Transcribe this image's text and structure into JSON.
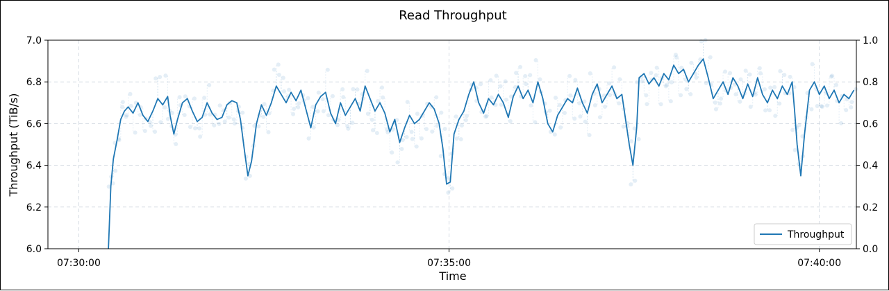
{
  "chart_data": {
    "type": "line",
    "title": "Read Throughput",
    "xlabel": "Time",
    "ylabel": "Throughput (TiB/s)",
    "x_ticks": [
      "07:30:00",
      "07:35:00",
      "07:40:00"
    ],
    "y_ticks": [
      "6.0",
      "6.2",
      "6.4",
      "6.6",
      "6.8",
      "7.0"
    ],
    "y_right_ticks": [
      "0.0",
      "0.2",
      "0.4",
      "0.6",
      "0.8",
      "1.0"
    ],
    "xlim": [
      "07:29:35",
      "07:40:30"
    ],
    "ylim": [
      6.0,
      7.0
    ],
    "y_right_lim": [
      0.0,
      1.0
    ],
    "grid": true,
    "legend_position": "bottom-right",
    "series": [
      {
        "name": "Throughput",
        "color": "#1f77b4",
        "points": [
          [
            "07:30:24",
            6.0
          ],
          [
            "07:30:26",
            6.3
          ],
          [
            "07:30:28",
            6.43
          ],
          [
            "07:30:31",
            6.52
          ],
          [
            "07:30:34",
            6.62
          ],
          [
            "07:30:37",
            6.66
          ],
          [
            "07:30:40",
            6.68
          ],
          [
            "07:30:44",
            6.65
          ],
          [
            "07:30:48",
            6.7
          ],
          [
            "07:30:52",
            6.64
          ],
          [
            "07:30:56",
            6.61
          ],
          [
            "07:31:00",
            6.66
          ],
          [
            "07:31:04",
            6.72
          ],
          [
            "07:31:08",
            6.69
          ],
          [
            "07:31:12",
            6.73
          ],
          [
            "07:31:14",
            6.64
          ],
          [
            "07:31:17",
            6.55
          ],
          [
            "07:31:20",
            6.62
          ],
          [
            "07:31:24",
            6.7
          ],
          [
            "07:31:28",
            6.72
          ],
          [
            "07:31:32",
            6.66
          ],
          [
            "07:31:36",
            6.61
          ],
          [
            "07:31:40",
            6.63
          ],
          [
            "07:31:44",
            6.7
          ],
          [
            "07:31:48",
            6.65
          ],
          [
            "07:31:52",
            6.62
          ],
          [
            "07:31:56",
            6.63
          ],
          [
            "07:32:00",
            6.69
          ],
          [
            "07:32:04",
            6.71
          ],
          [
            "07:32:08",
            6.7
          ],
          [
            "07:32:11",
            6.62
          ],
          [
            "07:32:14",
            6.48
          ],
          [
            "07:32:17",
            6.35
          ],
          [
            "07:32:20",
            6.42
          ],
          [
            "07:32:24",
            6.6
          ],
          [
            "07:32:28",
            6.69
          ],
          [
            "07:32:32",
            6.64
          ],
          [
            "07:32:36",
            6.7
          ],
          [
            "07:32:40",
            6.78
          ],
          [
            "07:32:44",
            6.74
          ],
          [
            "07:32:48",
            6.7
          ],
          [
            "07:32:52",
            6.75
          ],
          [
            "07:32:56",
            6.71
          ],
          [
            "07:33:00",
            6.76
          ],
          [
            "07:33:04",
            6.67
          ],
          [
            "07:33:08",
            6.58
          ],
          [
            "07:33:12",
            6.69
          ],
          [
            "07:33:16",
            6.73
          ],
          [
            "07:33:20",
            6.75
          ],
          [
            "07:33:24",
            6.65
          ],
          [
            "07:33:28",
            6.6
          ],
          [
            "07:33:32",
            6.7
          ],
          [
            "07:33:36",
            6.64
          ],
          [
            "07:33:40",
            6.68
          ],
          [
            "07:33:44",
            6.72
          ],
          [
            "07:33:48",
            6.66
          ],
          [
            "07:33:52",
            6.78
          ],
          [
            "07:33:56",
            6.72
          ],
          [
            "07:34:00",
            6.66
          ],
          [
            "07:34:04",
            6.7
          ],
          [
            "07:34:08",
            6.65
          ],
          [
            "07:34:12",
            6.56
          ],
          [
            "07:34:16",
            6.62
          ],
          [
            "07:34:20",
            6.51
          ],
          [
            "07:34:24",
            6.58
          ],
          [
            "07:34:28",
            6.64
          ],
          [
            "07:34:32",
            6.6
          ],
          [
            "07:34:36",
            6.62
          ],
          [
            "07:34:40",
            6.66
          ],
          [
            "07:34:44",
            6.7
          ],
          [
            "07:34:48",
            6.67
          ],
          [
            "07:34:52",
            6.6
          ],
          [
            "07:34:55",
            6.48
          ],
          [
            "07:34:58",
            6.31
          ],
          [
            "07:35:01",
            6.32
          ],
          [
            "07:35:04",
            6.55
          ],
          [
            "07:35:08",
            6.62
          ],
          [
            "07:35:12",
            6.66
          ],
          [
            "07:35:16",
            6.74
          ],
          [
            "07:35:20",
            6.8
          ],
          [
            "07:35:24",
            6.7
          ],
          [
            "07:35:28",
            6.65
          ],
          [
            "07:35:32",
            6.72
          ],
          [
            "07:35:36",
            6.69
          ],
          [
            "07:35:40",
            6.74
          ],
          [
            "07:35:44",
            6.7
          ],
          [
            "07:35:48",
            6.63
          ],
          [
            "07:35:52",
            6.73
          ],
          [
            "07:35:56",
            6.78
          ],
          [
            "07:36:00",
            6.72
          ],
          [
            "07:36:04",
            6.76
          ],
          [
            "07:36:08",
            6.7
          ],
          [
            "07:36:12",
            6.8
          ],
          [
            "07:36:16",
            6.72
          ],
          [
            "07:36:20",
            6.6
          ],
          [
            "07:36:24",
            6.56
          ],
          [
            "07:36:28",
            6.64
          ],
          [
            "07:36:32",
            6.68
          ],
          [
            "07:36:36",
            6.72
          ],
          [
            "07:36:40",
            6.7
          ],
          [
            "07:36:44",
            6.77
          ],
          [
            "07:36:48",
            6.7
          ],
          [
            "07:36:52",
            6.65
          ],
          [
            "07:36:56",
            6.74
          ],
          [
            "07:37:00",
            6.79
          ],
          [
            "07:37:04",
            6.7
          ],
          [
            "07:37:08",
            6.74
          ],
          [
            "07:37:12",
            6.78
          ],
          [
            "07:37:16",
            6.72
          ],
          [
            "07:37:20",
            6.74
          ],
          [
            "07:37:23",
            6.62
          ],
          [
            "07:37:26",
            6.5
          ],
          [
            "07:37:29",
            6.4
          ],
          [
            "07:37:32",
            6.58
          ],
          [
            "07:37:34",
            6.82
          ],
          [
            "07:37:38",
            6.84
          ],
          [
            "07:37:42",
            6.79
          ],
          [
            "07:37:46",
            6.82
          ],
          [
            "07:37:50",
            6.78
          ],
          [
            "07:37:54",
            6.84
          ],
          [
            "07:37:58",
            6.81
          ],
          [
            "07:38:02",
            6.88
          ],
          [
            "07:38:06",
            6.84
          ],
          [
            "07:38:10",
            6.86
          ],
          [
            "07:38:14",
            6.8
          ],
          [
            "07:38:18",
            6.84
          ],
          [
            "07:38:22",
            6.88
          ],
          [
            "07:38:26",
            6.91
          ],
          [
            "07:38:30",
            6.82
          ],
          [
            "07:38:34",
            6.72
          ],
          [
            "07:38:38",
            6.76
          ],
          [
            "07:38:42",
            6.8
          ],
          [
            "07:38:46",
            6.74
          ],
          [
            "07:38:50",
            6.82
          ],
          [
            "07:38:54",
            6.78
          ],
          [
            "07:38:58",
            6.72
          ],
          [
            "07:39:02",
            6.79
          ],
          [
            "07:39:06",
            6.73
          ],
          [
            "07:39:10",
            6.82
          ],
          [
            "07:39:14",
            6.74
          ],
          [
            "07:39:18",
            6.7
          ],
          [
            "07:39:22",
            6.76
          ],
          [
            "07:39:26",
            6.72
          ],
          [
            "07:39:30",
            6.78
          ],
          [
            "07:39:34",
            6.74
          ],
          [
            "07:39:38",
            6.8
          ],
          [
            "07:39:40",
            6.66
          ],
          [
            "07:39:42",
            6.5
          ],
          [
            "07:39:45",
            6.35
          ],
          [
            "07:39:48",
            6.55
          ],
          [
            "07:39:52",
            6.76
          ],
          [
            "07:39:56",
            6.8
          ],
          [
            "07:40:00",
            6.74
          ],
          [
            "07:40:04",
            6.78
          ],
          [
            "07:40:08",
            6.72
          ],
          [
            "07:40:12",
            6.76
          ],
          [
            "07:40:16",
            6.7
          ],
          [
            "07:40:20",
            6.74
          ],
          [
            "07:40:24",
            6.72
          ],
          [
            "07:40:28",
            6.76
          ]
        ]
      }
    ]
  }
}
